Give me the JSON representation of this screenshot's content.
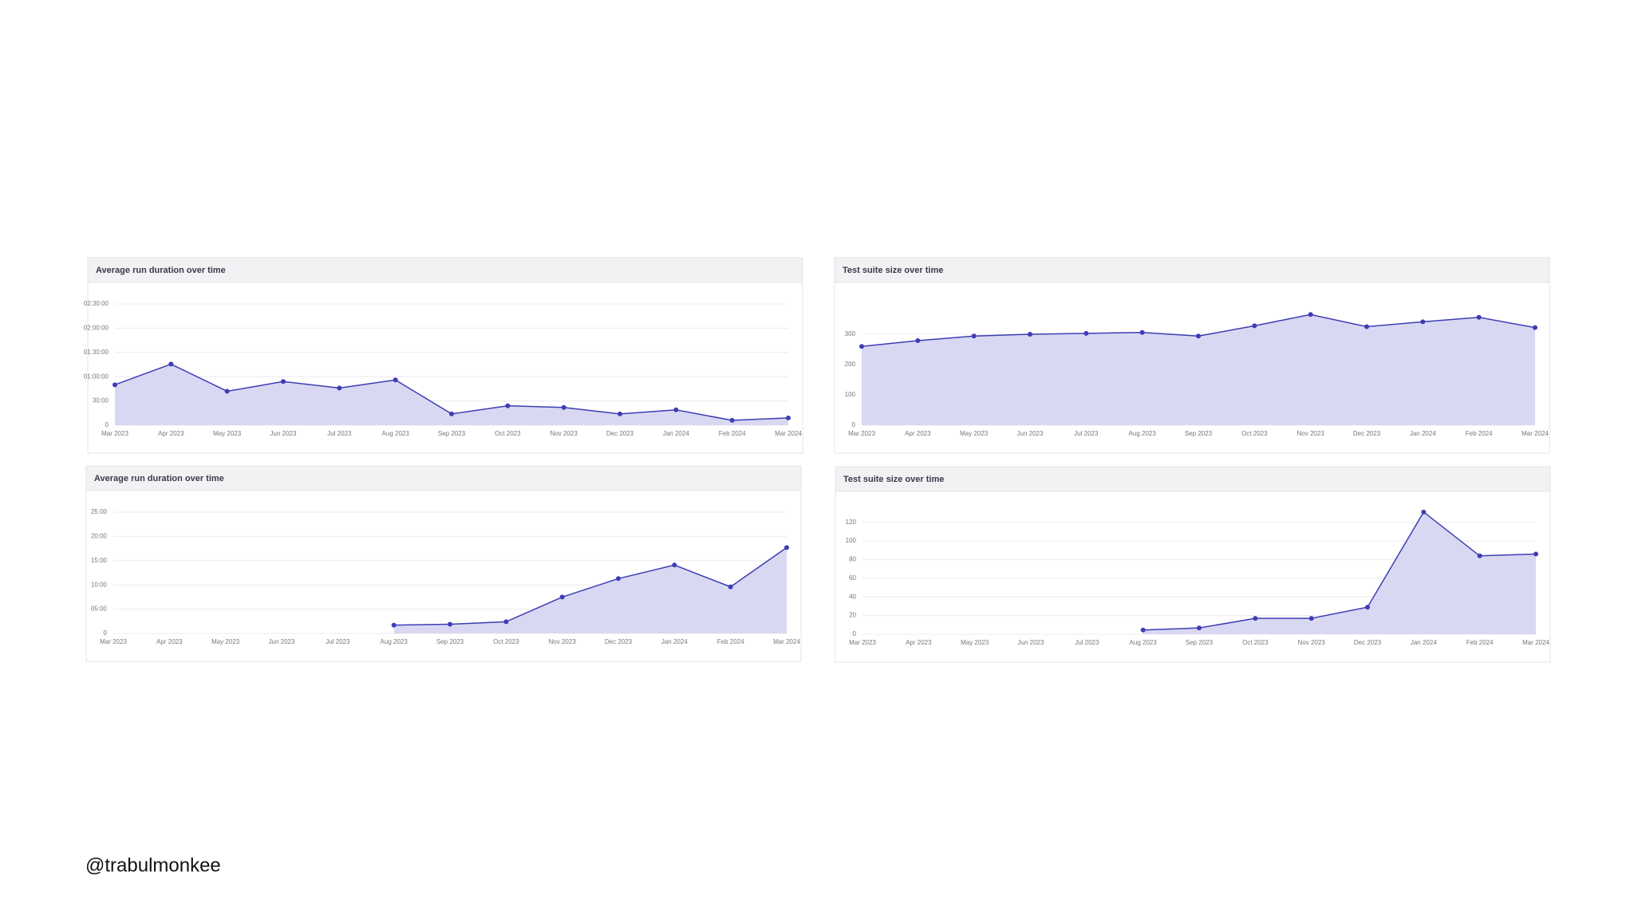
{
  "chart_data": [
    {
      "type": "area",
      "title": "Average run duration over time",
      "categories": [
        "Mar 2023",
        "Apr 2023",
        "May 2023",
        "Jun 2023",
        "Jul 2023",
        "Aug 2023",
        "Sep 2023",
        "Oct 2023",
        "Nov 2023",
        "Dec 2023",
        "Jan 2024",
        "Feb 2024",
        "Mar 2024"
      ],
      "values": [
        50,
        75.6,
        42,
        54,
        46,
        56,
        14,
        24,
        22,
        14,
        19,
        6,
        9
      ],
      "color": "#3d3db5",
      "fill": "#d8d8f2",
      "ylim": [
        0,
        150
      ],
      "yticks": [
        0,
        {
          "value": 30,
          "label": "30:00"
        },
        {
          "value": 60,
          "label": "01:00:00"
        },
        {
          "value": 90,
          "label": "01:30:00"
        },
        {
          "value": 120,
          "label": "02:00:00"
        },
        {
          "value": 150,
          "label": "02:30:00"
        }
      ],
      "grid": true
    },
    {
      "type": "area",
      "title": "Test suite size over time",
      "categories": [
        "Mar 2023",
        "Apr 2023",
        "May 2023",
        "Jun 2023",
        "Jul 2023",
        "Aug 2023",
        "Sep 2023",
        "Oct 2023",
        "Nov 2023",
        "Dec 2023",
        "Jan 2024",
        "Feb 2024",
        "Mar 2024"
      ],
      "values": [
        260,
        279,
        294,
        300,
        303,
        306,
        294,
        328,
        365,
        325,
        341,
        356,
        322
      ],
      "color": "#3d3db5",
      "fill": "#d8d8f2",
      "ylim": [
        0,
        400
      ],
      "yticks": [
        0,
        100,
        200,
        300
      ],
      "grid": true
    },
    {
      "type": "area",
      "title": "Average run duration over time",
      "categories": [
        "Mar 2023",
        "Apr 2023",
        "May 2023",
        "Jun 2023",
        "Jul 2023",
        "Aug 2023",
        "Sep 2023",
        "Oct 2023",
        "Nov 2023",
        "Dec 2023",
        "Jan 2024",
        "Feb 2024",
        "Mar 2024"
      ],
      "values": [
        null,
        null,
        null,
        null,
        null,
        1.7,
        1.9,
        2.4,
        7.5,
        11.3,
        14.1,
        9.6,
        17.7
      ],
      "color": "#3d3db5",
      "fill": "#d8d8f2",
      "ylim": [
        0,
        25
      ],
      "yticks": [
        0,
        {
          "value": 5,
          "label": "05:00"
        },
        {
          "value": 10,
          "label": "10:00"
        },
        {
          "value": 15,
          "label": "15:00"
        },
        {
          "value": 20,
          "label": "20:00"
        },
        {
          "value": 25,
          "label": "25:00"
        }
      ],
      "grid": true
    },
    {
      "type": "area",
      "title": "Test suite size over time",
      "categories": [
        "Mar 2023",
        "Apr 2023",
        "May 2023",
        "Jun 2023",
        "Jul 2023",
        "Aug 2023",
        "Sep 2023",
        "Oct 2023",
        "Nov 2023",
        "Dec 2023",
        "Jan 2024",
        "Feb 2024",
        "Mar 2024"
      ],
      "values": [
        null,
        null,
        null,
        null,
        null,
        4.5,
        6.7,
        17,
        17,
        29,
        131,
        84,
        86
      ],
      "color": "#3d3db5",
      "fill": "#d8d8f2",
      "ylim": [
        0,
        130
      ],
      "yticks": [
        0,
        20,
        40,
        60,
        80,
        100,
        120
      ],
      "grid": true
    }
  ],
  "footer_handle": "@trabulmonkee"
}
